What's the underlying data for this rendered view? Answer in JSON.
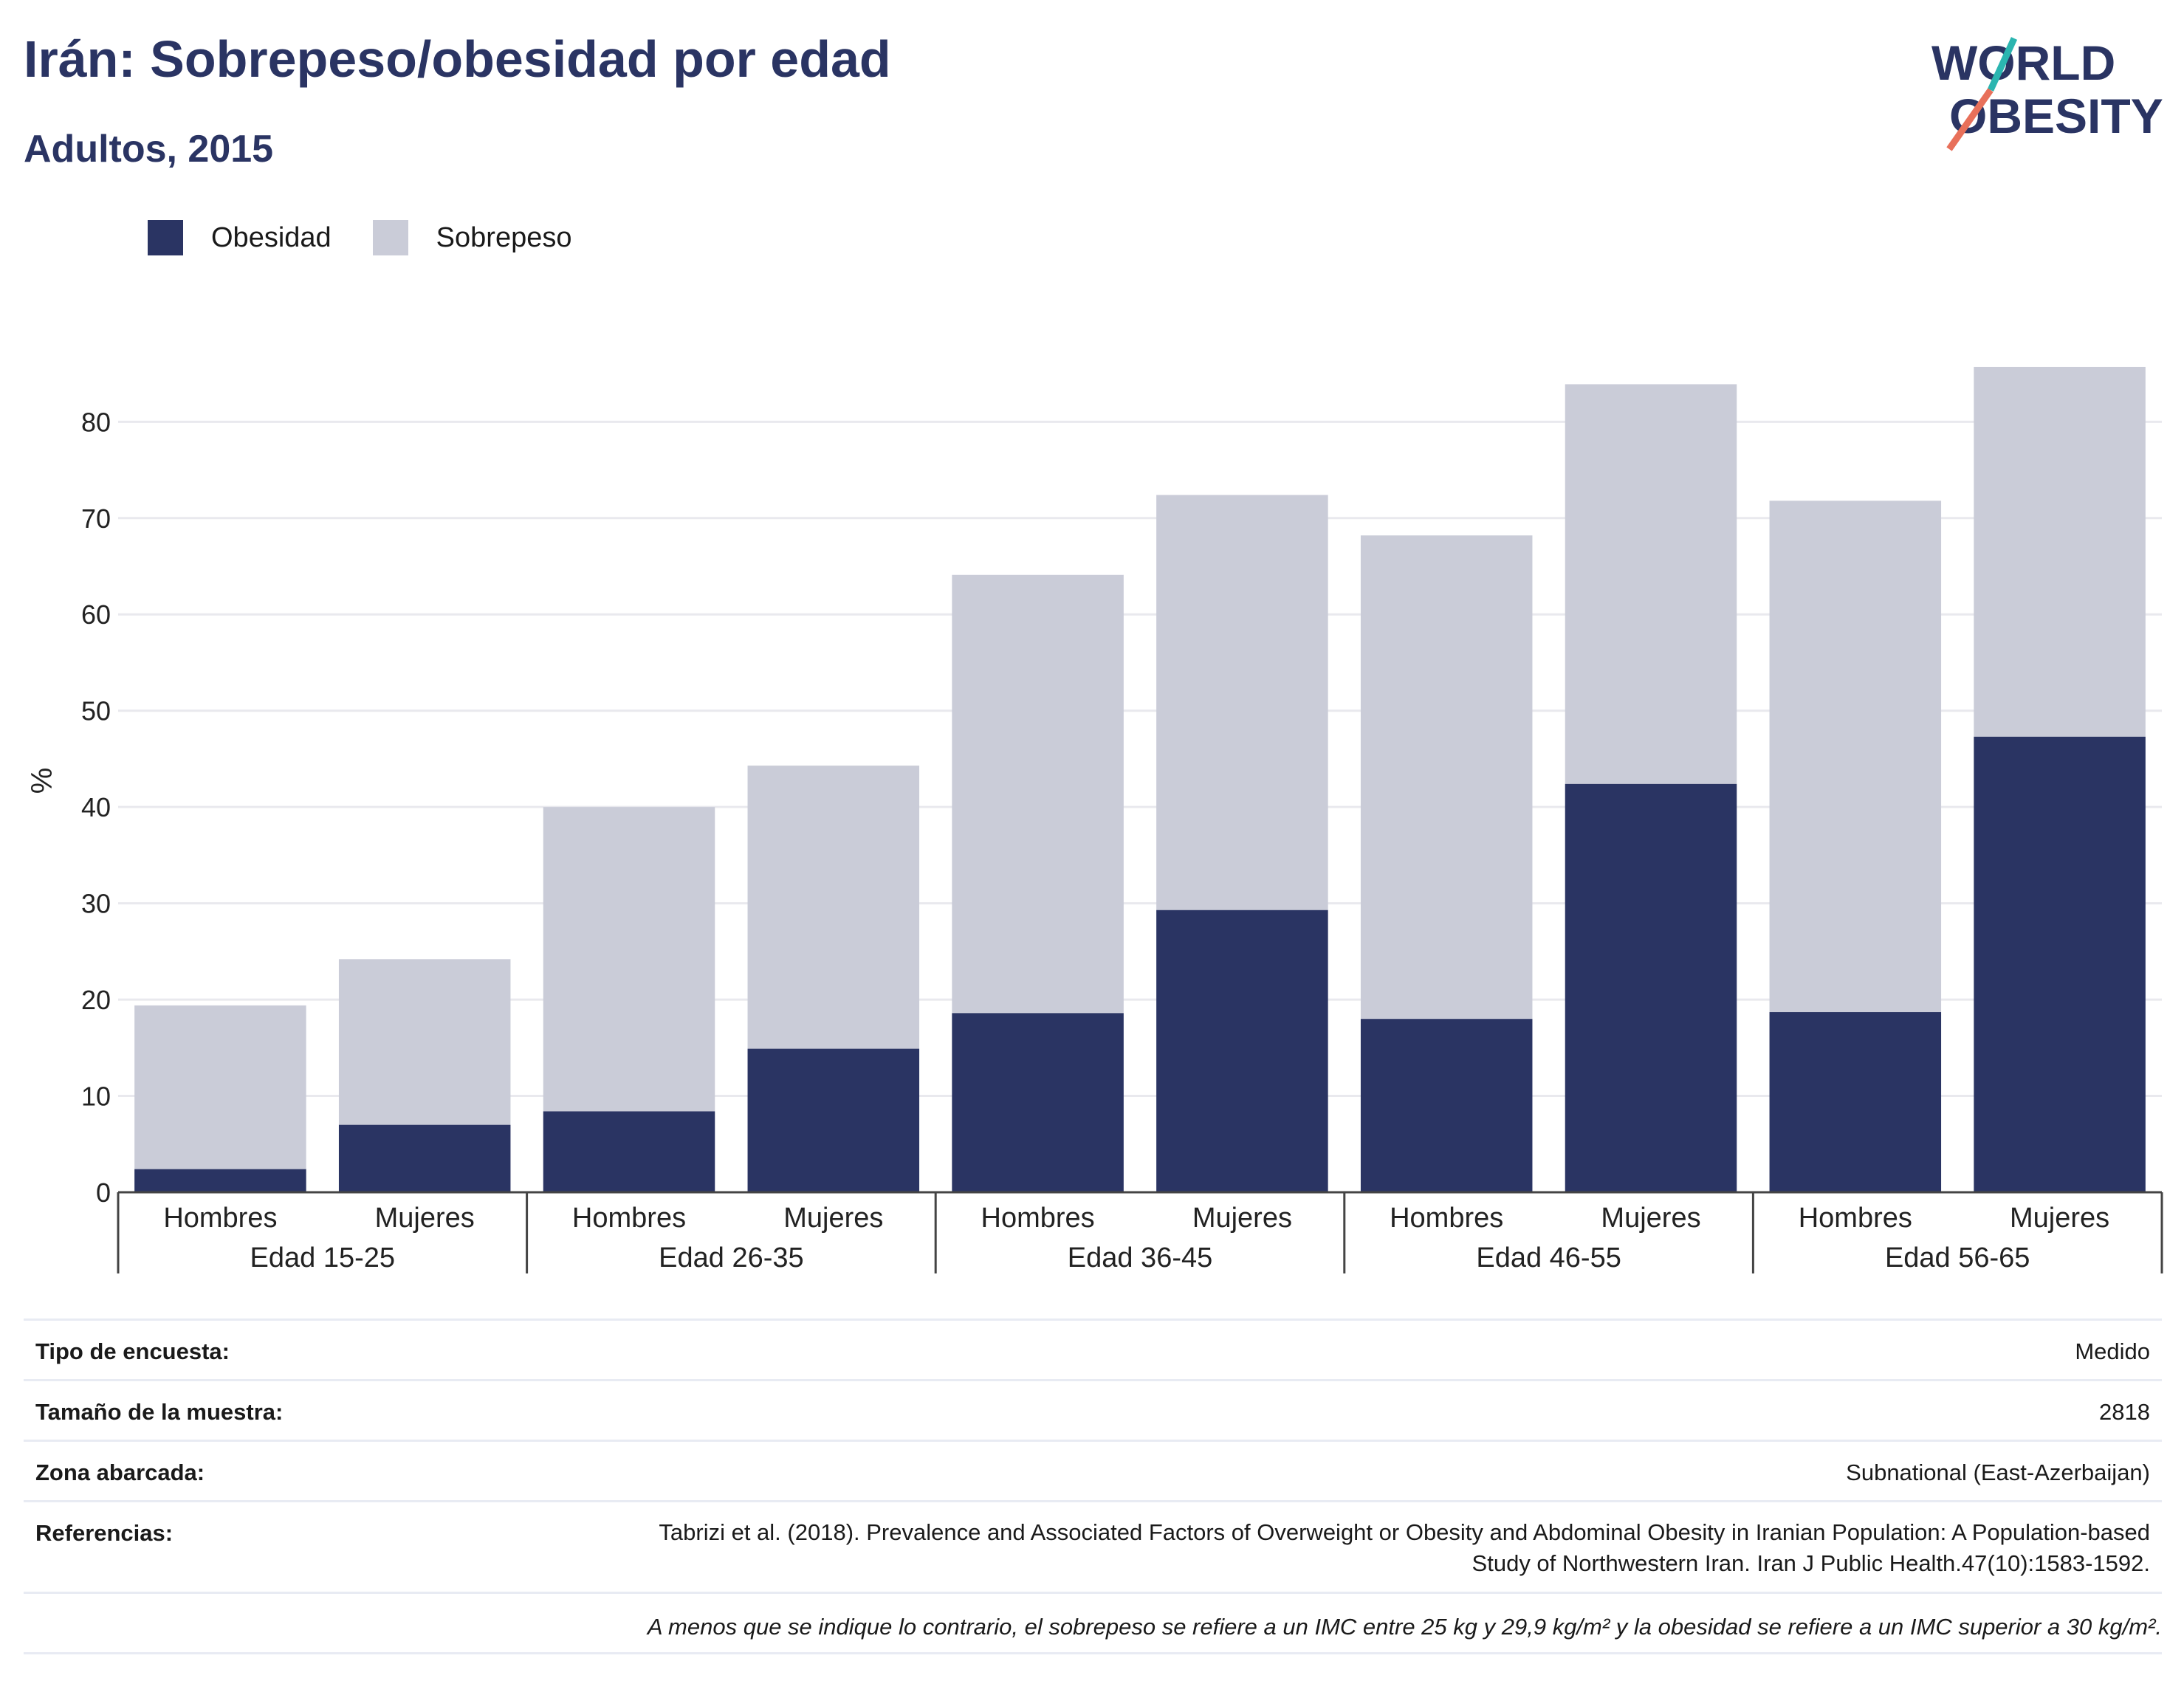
{
  "title": "Irán: Sobrepeso/obesidad por edad",
  "subtitle": "Adultos, 2015",
  "logo": {
    "line1": "WORLD",
    "line2": "OBESITY",
    "accent_teal": "#2bb5b0",
    "accent_orange": "#e8705a",
    "text_color": "#2a3463"
  },
  "legend": [
    {
      "label": "Obesidad",
      "color": "#2a3463"
    },
    {
      "label": "Sobrepeso",
      "color": "#caccd8"
    }
  ],
  "chart_data": {
    "type": "bar",
    "stacked": true,
    "ylabel": "%",
    "ylim": [
      0,
      87
    ],
    "yticks": [
      0,
      10,
      20,
      30,
      40,
      50,
      60,
      70,
      80
    ],
    "grid": true,
    "legend_position": "top-left",
    "groups": [
      "Edad 15-25",
      "Edad 26-35",
      "Edad 36-45",
      "Edad 46-55",
      "Edad 56-65"
    ],
    "subcategories": [
      "Hombres",
      "Mujeres"
    ],
    "series": [
      {
        "name": "Obesidad",
        "color": "#2a3463",
        "values": [
          2.4,
          7.0,
          8.4,
          14.9,
          18.6,
          29.3,
          18.0,
          42.4,
          18.7,
          47.3
        ]
      },
      {
        "name": "Sobrepeso",
        "color": "#caccd8",
        "values": [
          17.0,
          17.2,
          31.6,
          29.4,
          45.5,
          43.1,
          50.2,
          41.5,
          53.1,
          38.4
        ]
      }
    ]
  },
  "info": {
    "rows": [
      {
        "label": "Tipo de encuesta:",
        "value": "Medido"
      },
      {
        "label": "Tamaño de la muestra:",
        "value": "2818"
      },
      {
        "label": "Zona abarcada:",
        "value": "Subnational (East-Azerbaijan)"
      },
      {
        "label": "Referencias:",
        "value": "Tabrizi et al. (2018). Prevalence and Associated Factors of Overweight or Obesity and Abdominal Obesity in Iranian Population: A Population-based Study of Northwestern Iran. Iran J Public Health.47(10):1583-1592."
      }
    ],
    "footnote": "A menos que se indique lo contrario, el sobrepeso se refiere a un IMC entre 25 kg y 29,9 kg/m² y la obesidad se refiere a un IMC superior a 30 kg/m²."
  }
}
